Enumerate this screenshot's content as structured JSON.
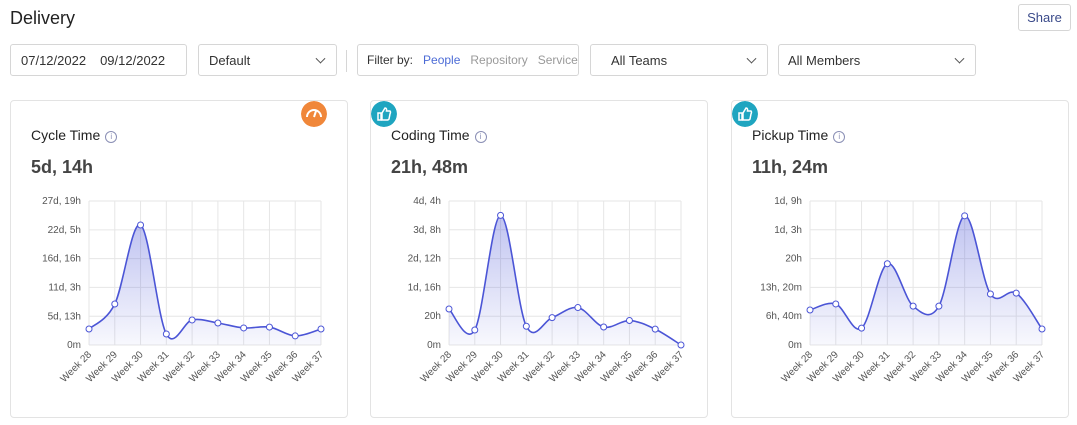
{
  "header": {
    "title": "Delivery",
    "share": "Share"
  },
  "filters": {
    "date_start": "07/12/2022",
    "date_end": "09/12/2022",
    "preset": "Default",
    "filter_by": "Filter by:",
    "options": [
      "People",
      "Repository",
      "Service"
    ],
    "teams": "All Teams",
    "members": "All Members"
  },
  "chart_data": [
    {
      "type": "line",
      "title": "Cycle Time",
      "value": "5d, 14h",
      "categories": [
        "Week 28",
        "Week 29",
        "Week 30",
        "Week 31",
        "Week 32",
        "Week 33",
        "Week 34",
        "Week 35",
        "Week 36",
        "Week 37"
      ],
      "values": [
        74,
        190,
        556,
        51,
        116,
        102,
        79,
        83,
        42,
        74
      ],
      "color": "#4b55d6",
      "ylim": [
        0,
        667
      ],
      "yticks": [
        {
          "value": 0,
          "label": "0m"
        },
        {
          "value": 133,
          "label": "5d, 13h"
        },
        {
          "value": 267,
          "label": "11d, 3h"
        },
        {
          "value": 400,
          "label": "16d, 16h"
        },
        {
          "value": 533,
          "label": "22d, 5h"
        },
        {
          "value": 667,
          "label": "27d, 19h"
        }
      ],
      "grid": true
    },
    {
      "type": "line",
      "title": "Coding Time",
      "value": "21h, 48m",
      "categories": [
        "Week 28",
        "Week 29",
        "Week 30",
        "Week 31",
        "Week 32",
        "Week 33",
        "Week 34",
        "Week 35",
        "Week 36",
        "Week 37"
      ],
      "values": [
        25,
        10.4,
        90,
        13,
        19,
        26,
        12.5,
        17,
        11,
        0
      ],
      "color": "#4b55d6",
      "ylim": [
        0,
        100
      ],
      "yticks": [
        {
          "value": 0,
          "label": "0m"
        },
        {
          "value": 20,
          "label": "20h"
        },
        {
          "value": 40,
          "label": "1d, 16h"
        },
        {
          "value": 60,
          "label": "2d, 12h"
        },
        {
          "value": 80,
          "label": "3d, 8h"
        },
        {
          "value": 100,
          "label": "4d, 4h"
        }
      ],
      "grid": true
    },
    {
      "type": "line",
      "title": "Pickup Time",
      "value": "11h, 24m",
      "categories": [
        "Week 28",
        "Week 29",
        "Week 30",
        "Week 31",
        "Week 32",
        "Week 33",
        "Week 34",
        "Week 35",
        "Week 36",
        "Week 37"
      ],
      "values": [
        8.1,
        9.5,
        3.9,
        18.8,
        9.0,
        9.0,
        29.9,
        11.8,
        12.0,
        3.7
      ],
      "color": "#4b55d6",
      "ylim": [
        0,
        33.33
      ],
      "yticks": [
        {
          "value": 0,
          "label": "0m"
        },
        {
          "value": 6.67,
          "label": "6h, 40m"
        },
        {
          "value": 13.33,
          "label": "13h, 20m"
        },
        {
          "value": 20,
          "label": "20h"
        },
        {
          "value": 26.67,
          "label": "1d, 3h"
        },
        {
          "value": 33.33,
          "label": "1d, 9h"
        }
      ],
      "grid": true
    }
  ]
}
